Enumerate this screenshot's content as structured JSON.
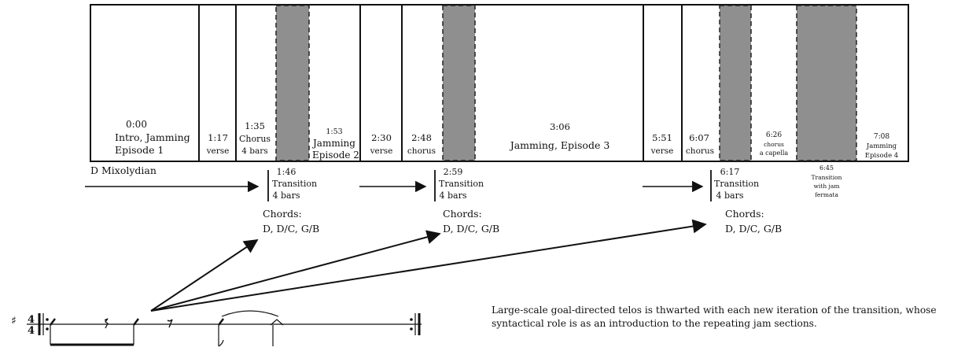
{
  "sections": [
    {
      "time": "0:00",
      "lines": [
        "Intro, Jamming",
        "Episode 1"
      ]
    },
    {
      "time": "1:17",
      "lines": [
        "verse"
      ]
    },
    {
      "time": "1:35",
      "lines": [
        "Chorus",
        "4 bars"
      ]
    },
    {
      "time": "1:53",
      "lines": [
        "Jamming",
        "Episode 2"
      ]
    },
    {
      "time": "2:30",
      "lines": [
        "verse"
      ]
    },
    {
      "time": "2:48",
      "lines": [
        "chorus"
      ]
    },
    {
      "time": "3:06",
      "lines": [
        "Jamming, Episode 3"
      ]
    },
    {
      "time": "5:51",
      "lines": [
        "verse"
      ]
    },
    {
      "time": "6:07",
      "lines": [
        "chorus"
      ]
    },
    {
      "time": "6:26",
      "lines": [
        "chorus",
        "a capella"
      ]
    },
    {
      "time": "7:08",
      "lines": [
        "Jamming",
        "Episode 4"
      ]
    }
  ],
  "key_label": "D Mixolydian",
  "transitions": [
    {
      "time": "1:46",
      "lines": [
        "Transition",
        "4 bars"
      ],
      "chords_label": "Chords:",
      "chords": "D, D/C, G/B"
    },
    {
      "time": "2:59",
      "lines": [
        "Transition",
        "4 bars"
      ],
      "chords_label": "Chords:",
      "chords": "D, D/C, G/B"
    },
    {
      "time": "6:17",
      "lines": [
        "Transition",
        "4 bars"
      ],
      "chords_label": "Chords:",
      "chords": "D, D/C, G/B"
    }
  ],
  "final_transition": {
    "time": "6:45",
    "lines": [
      "Transition",
      "with jam",
      "fermata"
    ]
  },
  "note_text": "Large-scale goal-directed telos is thwarted with each new iteration of the transition, whose syntactical role is as an introduction to the repeating jam sections.",
  "time_signature": {
    "top": "4",
    "bottom": "4"
  },
  "colors": {
    "shade": "#8f8f8f",
    "ink": "#111111"
  }
}
